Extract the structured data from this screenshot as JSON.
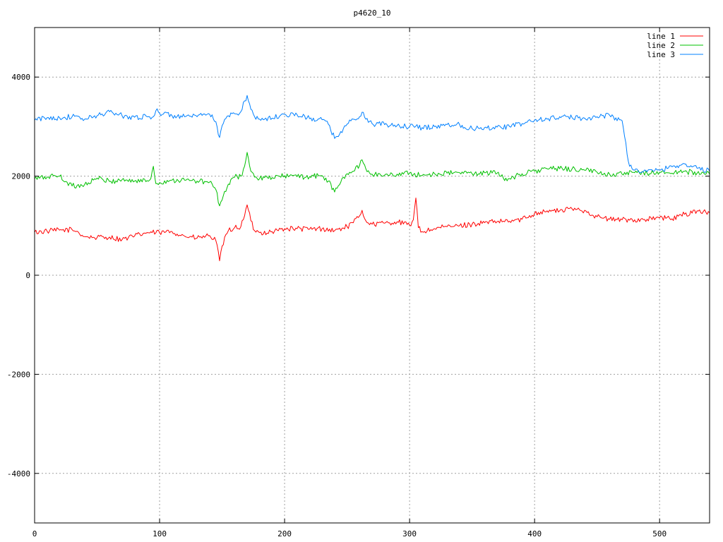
{
  "chart_data": {
    "type": "line",
    "title": "p4620_10",
    "xlabel": "",
    "ylabel": "",
    "xlim": [
      0,
      540
    ],
    "ylim": [
      -5000,
      5000
    ],
    "x_ticks": [
      0,
      100,
      200,
      300,
      400,
      500
    ],
    "y_ticks": [
      -4000,
      -2000,
      0,
      2000,
      4000
    ],
    "x_tick_labels": [
      "0",
      "100",
      "200",
      "300",
      "400",
      "500"
    ],
    "y_tick_labels": [
      "-4000",
      "-2000",
      "0",
      "2000",
      "4000"
    ],
    "grid": true,
    "legend_position": "top-right",
    "series": [
      {
        "name": "line 1",
        "color": "#ff0000",
        "points": [
          [
            0,
            870
          ],
          [
            10,
            890
          ],
          [
            20,
            910
          ],
          [
            30,
            920
          ],
          [
            35,
            870
          ],
          [
            40,
            780
          ],
          [
            50,
            760
          ],
          [
            60,
            770
          ],
          [
            70,
            720
          ],
          [
            75,
            760
          ],
          [
            80,
            790
          ],
          [
            90,
            860
          ],
          [
            100,
            860
          ],
          [
            110,
            880
          ],
          [
            120,
            790
          ],
          [
            130,
            750
          ],
          [
            140,
            800
          ],
          [
            145,
            700
          ],
          [
            148,
            290
          ],
          [
            150,
            590
          ],
          [
            155,
            900
          ],
          [
            160,
            960
          ],
          [
            165,
            980
          ],
          [
            168,
            1200
          ],
          [
            170,
            1420
          ],
          [
            173,
            1100
          ],
          [
            176,
            900
          ],
          [
            180,
            860
          ],
          [
            190,
            880
          ],
          [
            200,
            940
          ],
          [
            210,
            940
          ],
          [
            220,
            930
          ],
          [
            230,
            940
          ],
          [
            240,
            900
          ],
          [
            250,
            980
          ],
          [
            255,
            1060
          ],
          [
            260,
            1200
          ],
          [
            262,
            1310
          ],
          [
            265,
            1100
          ],
          [
            270,
            1030
          ],
          [
            280,
            1050
          ],
          [
            290,
            1080
          ],
          [
            300,
            1010
          ],
          [
            303,
            1120
          ],
          [
            305,
            1560
          ],
          [
            307,
            960
          ],
          [
            310,
            880
          ],
          [
            320,
            940
          ],
          [
            330,
            980
          ],
          [
            340,
            1000
          ],
          [
            350,
            1030
          ],
          [
            360,
            1060
          ],
          [
            370,
            1080
          ],
          [
            380,
            1090
          ],
          [
            390,
            1130
          ],
          [
            400,
            1250
          ],
          [
            410,
            1300
          ],
          [
            420,
            1300
          ],
          [
            430,
            1340
          ],
          [
            440,
            1310
          ],
          [
            450,
            1180
          ],
          [
            460,
            1130
          ],
          [
            470,
            1120
          ],
          [
            480,
            1120
          ],
          [
            490,
            1130
          ],
          [
            500,
            1160
          ],
          [
            510,
            1140
          ],
          [
            520,
            1230
          ],
          [
            530,
            1300
          ],
          [
            540,
            1260
          ]
        ]
      },
      {
        "name": "line 2",
        "color": "#00c000",
        "points": [
          [
            0,
            1950
          ],
          [
            10,
            1980
          ],
          [
            15,
            2010
          ],
          [
            20,
            2000
          ],
          [
            30,
            1800
          ],
          [
            40,
            1830
          ],
          [
            50,
            1960
          ],
          [
            60,
            1890
          ],
          [
            70,
            1930
          ],
          [
            80,
            1900
          ],
          [
            90,
            1910
          ],
          [
            93,
            1950
          ],
          [
            95,
            2200
          ],
          [
            97,
            1850
          ],
          [
            100,
            1870
          ],
          [
            110,
            1920
          ],
          [
            120,
            1920
          ],
          [
            130,
            1900
          ],
          [
            140,
            1880
          ],
          [
            145,
            1730
          ],
          [
            148,
            1400
          ],
          [
            150,
            1520
          ],
          [
            155,
            1840
          ],
          [
            160,
            1980
          ],
          [
            165,
            2000
          ],
          [
            168,
            2200
          ],
          [
            170,
            2480
          ],
          [
            173,
            2100
          ],
          [
            176,
            1980
          ],
          [
            180,
            1950
          ],
          [
            190,
            1970
          ],
          [
            200,
            2010
          ],
          [
            210,
            1990
          ],
          [
            220,
            1990
          ],
          [
            230,
            2010
          ],
          [
            235,
            1900
          ],
          [
            240,
            1680
          ],
          [
            245,
            1880
          ],
          [
            250,
            2050
          ],
          [
            255,
            2100
          ],
          [
            260,
            2220
          ],
          [
            262,
            2330
          ],
          [
            265,
            2150
          ],
          [
            270,
            2040
          ],
          [
            280,
            2020
          ],
          [
            290,
            2040
          ],
          [
            300,
            2060
          ],
          [
            310,
            2010
          ],
          [
            320,
            2050
          ],
          [
            330,
            2060
          ],
          [
            340,
            2070
          ],
          [
            350,
            2050
          ],
          [
            360,
            2070
          ],
          [
            370,
            2060
          ],
          [
            375,
            1960
          ],
          [
            380,
            1950
          ],
          [
            390,
            2050
          ],
          [
            400,
            2100
          ],
          [
            410,
            2150
          ],
          [
            420,
            2150
          ],
          [
            430,
            2150
          ],
          [
            440,
            2120
          ],
          [
            450,
            2080
          ],
          [
            460,
            2040
          ],
          [
            470,
            2040
          ],
          [
            480,
            2070
          ],
          [
            490,
            2060
          ],
          [
            500,
            2080
          ],
          [
            510,
            2060
          ],
          [
            520,
            2100
          ],
          [
            530,
            2060
          ],
          [
            540,
            2040
          ]
        ]
      },
      {
        "name": "line 3",
        "color": "#0080ff",
        "points": [
          [
            0,
            3130
          ],
          [
            10,
            3180
          ],
          [
            20,
            3180
          ],
          [
            30,
            3200
          ],
          [
            40,
            3150
          ],
          [
            50,
            3220
          ],
          [
            60,
            3300
          ],
          [
            70,
            3220
          ],
          [
            80,
            3190
          ],
          [
            90,
            3200
          ],
          [
            95,
            3200
          ],
          [
            98,
            3360
          ],
          [
            100,
            3270
          ],
          [
            110,
            3220
          ],
          [
            120,
            3200
          ],
          [
            130,
            3200
          ],
          [
            140,
            3250
          ],
          [
            145,
            3100
          ],
          [
            148,
            2780
          ],
          [
            150,
            3020
          ],
          [
            155,
            3220
          ],
          [
            160,
            3260
          ],
          [
            165,
            3300
          ],
          [
            168,
            3520
          ],
          [
            170,
            3630
          ],
          [
            173,
            3350
          ],
          [
            176,
            3200
          ],
          [
            180,
            3150
          ],
          [
            190,
            3170
          ],
          [
            200,
            3250
          ],
          [
            210,
            3240
          ],
          [
            220,
            3160
          ],
          [
            230,
            3140
          ],
          [
            235,
            3050
          ],
          [
            240,
            2760
          ],
          [
            245,
            2900
          ],
          [
            250,
            3050
          ],
          [
            255,
            3150
          ],
          [
            260,
            3200
          ],
          [
            262,
            3290
          ],
          [
            265,
            3150
          ],
          [
            270,
            3060
          ],
          [
            280,
            3040
          ],
          [
            290,
            3020
          ],
          [
            300,
            3000
          ],
          [
            310,
            2980
          ],
          [
            320,
            3000
          ],
          [
            330,
            3040
          ],
          [
            340,
            3040
          ],
          [
            350,
            2960
          ],
          [
            360,
            2980
          ],
          [
            370,
            2990
          ],
          [
            380,
            3000
          ],
          [
            390,
            3060
          ],
          [
            400,
            3130
          ],
          [
            410,
            3150
          ],
          [
            420,
            3200
          ],
          [
            430,
            3180
          ],
          [
            440,
            3170
          ],
          [
            450,
            3200
          ],
          [
            460,
            3230
          ],
          [
            470,
            3120
          ],
          [
            472,
            2800
          ],
          [
            475,
            2300
          ],
          [
            478,
            2150
          ],
          [
            480,
            2120
          ],
          [
            490,
            2090
          ],
          [
            500,
            2120
          ],
          [
            510,
            2190
          ],
          [
            520,
            2250
          ],
          [
            530,
            2160
          ],
          [
            540,
            2100
          ]
        ]
      }
    ]
  }
}
